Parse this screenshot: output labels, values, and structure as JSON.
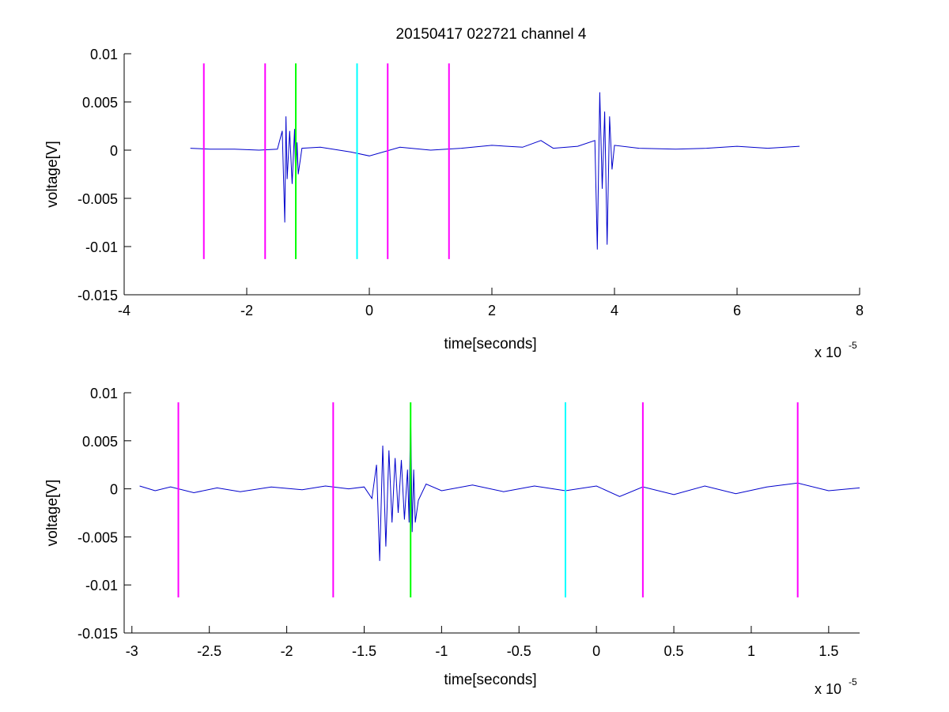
{
  "chart_data": [
    {
      "type": "line",
      "title": "20150417 022721 channel 4",
      "xlabel": "time[seconds]",
      "ylabel": "voltage[V]",
      "x_exponent": "x 10",
      "x_exponent_power": "-5",
      "xlim": [
        -4,
        8
      ],
      "ylim": [
        -0.015,
        0.01
      ],
      "xticks": [
        -4,
        -2,
        0,
        2,
        4,
        6,
        8
      ],
      "xtick_labels": [
        "-4",
        "-2",
        "0",
        "2",
        "4",
        "6",
        "8"
      ],
      "yticks": [
        -0.015,
        -0.01,
        -0.005,
        0,
        0.005,
        0.01
      ],
      "ytick_labels": [
        "-0.015",
        "-0.01",
        "-0.005",
        "0",
        "0.005",
        "0.01"
      ],
      "grid": false,
      "series": [
        {
          "color": "#0000cc",
          "x": [
            -2.92,
            -2.6,
            -2.2,
            -1.8,
            -1.5,
            -1.42,
            -1.38,
            -1.36,
            -1.34,
            -1.3,
            -1.26,
            -1.22,
            -1.2,
            -1.18,
            -1.16,
            -1.1,
            -0.8,
            -0.3,
            0.0,
            0.5,
            1.0,
            1.5,
            2.0,
            2.5,
            2.8,
            3.0,
            3.4,
            3.68,
            3.72,
            3.76,
            3.8,
            3.84,
            3.88,
            3.92,
            3.96,
            4.0,
            4.4,
            5.0,
            5.5,
            6.0,
            6.5,
            7.02
          ],
          "y": [
            0.0002,
            0.0001,
            0.0001,
            0.0,
            0.0001,
            0.002,
            -0.0075,
            0.0035,
            -0.003,
            0.002,
            -0.0035,
            0.0022,
            -0.0035,
            0.0008,
            -0.0025,
            0.0002,
            0.0003,
            -0.0002,
            -0.0006,
            0.0003,
            0.0,
            0.0002,
            0.0005,
            0.0003,
            0.001,
            0.0002,
            0.0004,
            0.001,
            -0.0103,
            0.006,
            -0.004,
            0.004,
            -0.0098,
            0.0035,
            -0.002,
            0.0005,
            0.0002,
            0.0001,
            0.0002,
            0.0004,
            0.0002,
            0.0004
          ]
        }
      ],
      "markers": [
        {
          "x": -2.7,
          "color": "#ff00ff"
        },
        {
          "x": -1.7,
          "color": "#ff00ff"
        },
        {
          "x": -1.2,
          "color": "#00ff00"
        },
        {
          "x": -0.2,
          "color": "#00ffff"
        },
        {
          "x": 0.3,
          "color": "#ff00ff"
        },
        {
          "x": 1.3,
          "color": "#ff00ff"
        }
      ],
      "marker_range": [
        -0.0113,
        0.009
      ]
    },
    {
      "type": "line",
      "title": "",
      "xlabel": "time[seconds]",
      "ylabel": "voltage[V]",
      "x_exponent": "x 10",
      "x_exponent_power": "-5",
      "xlim": [
        -3.05,
        1.7
      ],
      "ylim": [
        -0.015,
        0.01
      ],
      "xticks": [
        -3,
        -2.5,
        -2,
        -1.5,
        -1,
        -0.5,
        0,
        0.5,
        1,
        1.5
      ],
      "xtick_labels": [
        "-3",
        "-2.5",
        "-2",
        "-1.5",
        "-1",
        "-0.5",
        "0",
        "0.5",
        "1",
        "1.5"
      ],
      "yticks": [
        -0.015,
        -0.01,
        -0.005,
        0,
        0.005,
        0.01
      ],
      "ytick_labels": [
        "-0.015",
        "-0.01",
        "-0.005",
        "0",
        "0.005",
        "0.01"
      ],
      "grid": false,
      "series": [
        {
          "color": "#0000cc",
          "x": [
            -2.95,
            -2.85,
            -2.75,
            -2.6,
            -2.45,
            -2.3,
            -2.1,
            -1.9,
            -1.75,
            -1.6,
            -1.5,
            -1.45,
            -1.42,
            -1.4,
            -1.38,
            -1.36,
            -1.34,
            -1.32,
            -1.3,
            -1.28,
            -1.26,
            -1.24,
            -1.22,
            -1.21,
            -1.2,
            -1.19,
            -1.18,
            -1.17,
            -1.15,
            -1.1,
            -1.0,
            -0.8,
            -0.6,
            -0.4,
            -0.2,
            0.0,
            0.15,
            0.3,
            0.5,
            0.7,
            0.9,
            1.1,
            1.3,
            1.5,
            1.7
          ],
          "y": [
            0.0003,
            -0.0002,
            0.0002,
            -0.0004,
            0.0001,
            -0.0003,
            0.0002,
            -0.0001,
            0.0003,
            0.0,
            0.0002,
            -0.001,
            0.0025,
            -0.0075,
            0.0045,
            -0.006,
            0.004,
            -0.0035,
            0.0032,
            -0.0025,
            0.003,
            -0.0032,
            0.002,
            -0.0035,
            0.0085,
            -0.0045,
            0.002,
            -0.0035,
            -0.0012,
            0.0005,
            -0.0002,
            0.0004,
            -0.0003,
            0.0003,
            -0.0002,
            0.0003,
            -0.0008,
            0.0002,
            -0.0006,
            0.0003,
            -0.0005,
            0.0002,
            0.0006,
            -0.0002,
            0.0001
          ]
        }
      ],
      "markers": [
        {
          "x": -2.7,
          "color": "#ff00ff"
        },
        {
          "x": -1.7,
          "color": "#ff00ff"
        },
        {
          "x": -1.2,
          "color": "#00ff00"
        },
        {
          "x": -0.2,
          "color": "#00ffff"
        },
        {
          "x": 0.3,
          "color": "#ff00ff"
        },
        {
          "x": 1.3,
          "color": "#ff00ff"
        }
      ],
      "marker_range": [
        -0.0113,
        0.009
      ]
    }
  ]
}
